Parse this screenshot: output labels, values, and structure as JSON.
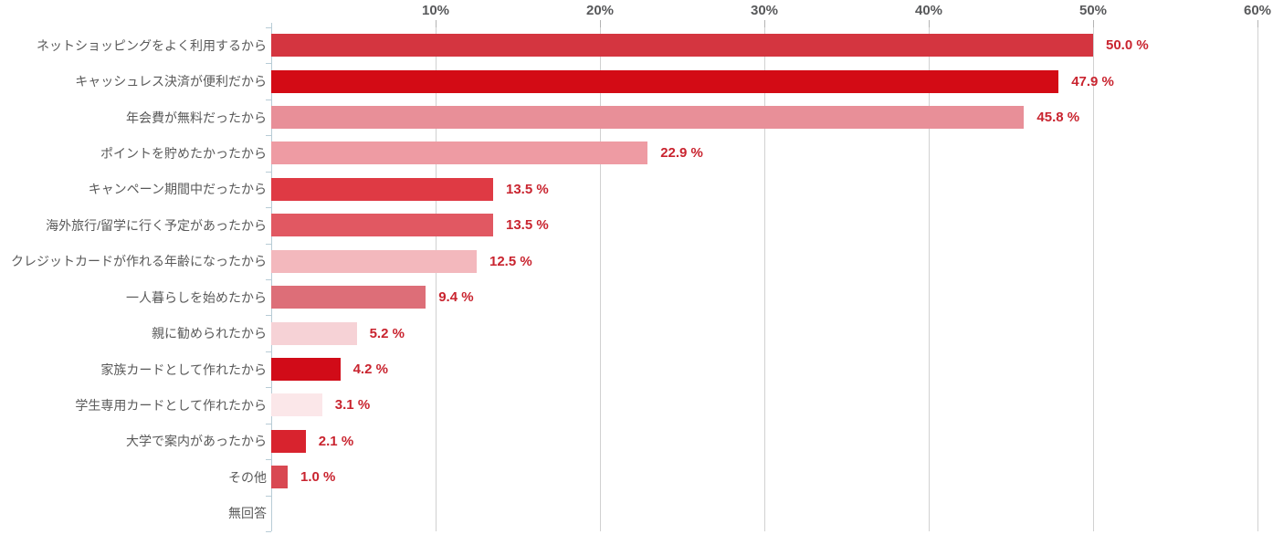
{
  "chart_data": {
    "type": "bar",
    "orientation": "horizontal",
    "title": "",
    "xlabel": "",
    "ylabel": "",
    "xlim": [
      0,
      60
    ],
    "grid": true,
    "x_ticks": [
      {
        "value": 10,
        "label": "10%"
      },
      {
        "value": 20,
        "label": "20%"
      },
      {
        "value": 30,
        "label": "30%"
      },
      {
        "value": 40,
        "label": "40%"
      },
      {
        "value": 50,
        "label": "50%"
      },
      {
        "value": 60,
        "label": "60%"
      }
    ],
    "categories": [
      "ネットショッピングをよく利用するから",
      "キャッシュレス決済が便利だから",
      "年会費が無料だったから",
      "ポイントを貯めたかったから",
      "キャンペーン期間中だったから",
      "海外旅行/留学に行く予定があったから",
      "クレジットカードが作れる年齢になったから",
      "一人暮らしを始めたから",
      "親に勧められたから",
      "家族カードとして作れたから",
      "学生専用カードとして作れたから",
      "大学で案内があったから",
      "その他",
      "無回答"
    ],
    "values": [
      50.0,
      47.9,
      45.8,
      22.9,
      13.5,
      13.5,
      12.5,
      9.4,
      5.2,
      4.2,
      3.1,
      2.1,
      1.0,
      0
    ],
    "value_labels": [
      "50.0 %",
      "47.9 %",
      "45.8 %",
      "22.9 %",
      "13.5 %",
      "13.5 %",
      "12.5 %",
      "9.4 %",
      "5.2 %",
      "4.2 %",
      "3.1 %",
      "2.1 %",
      "1.0 %",
      ""
    ],
    "bar_colors": [
      "#d43540",
      "#d30b15",
      "#e88f98",
      "#ee9ba3",
      "#df3a44",
      "#e15862",
      "#f3b8bd",
      "#dd6e78",
      "#f6d2d6",
      "#d10b18",
      "#fbe7e9",
      "#d8232e",
      "#d94852",
      "#ffffff"
    ],
    "colors": {
      "value_label": "#c9242f",
      "category_label": "#595959",
      "axis_label": "#58595b",
      "gridline": "#d1d1d1",
      "axis_line": "#b8ccd6",
      "tick": "#b3b3b3"
    },
    "legend": null
  }
}
